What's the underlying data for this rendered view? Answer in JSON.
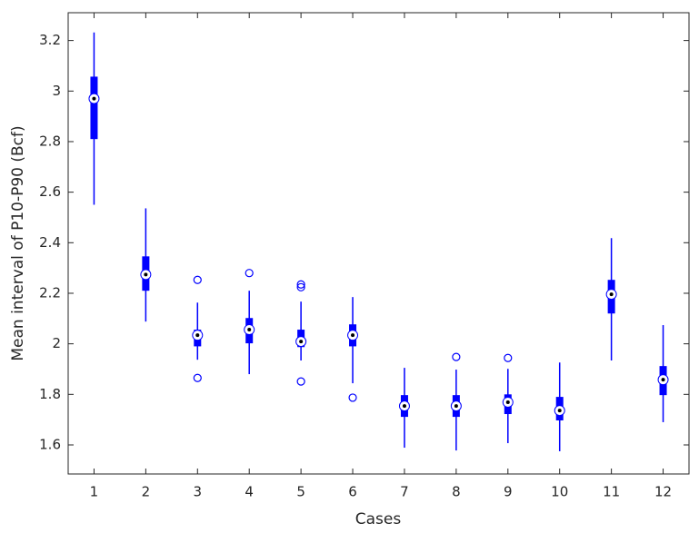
{
  "chart_data": {
    "type": "boxplot",
    "xlabel": "Cases",
    "ylabel": "Mean interval of P10-P90 (Bcf)",
    "categories": [
      1,
      2,
      3,
      4,
      5,
      6,
      7,
      8,
      9,
      10,
      11,
      12
    ],
    "color": "#0000ff",
    "ylim": [
      1.485,
      3.31
    ],
    "yticks": [
      1.6,
      1.8,
      2,
      2.2,
      2.4,
      2.6,
      2.8,
      3,
      3.2
    ],
    "boxes": [
      {
        "low": 2.55,
        "q1": 2.81,
        "median": 2.97,
        "q3": 3.057,
        "high": 3.232,
        "outliers": []
      },
      {
        "low": 2.088,
        "q1": 2.21,
        "median": 2.274,
        "q3": 2.346,
        "high": 2.536,
        "outliers": []
      },
      {
        "low": 1.937,
        "q1": 1.99,
        "median": 2.034,
        "q3": 2.056,
        "high": 2.163,
        "outliers": [
          2.253,
          1.865
        ]
      },
      {
        "low": 1.88,
        "q1": 2.002,
        "median": 2.056,
        "q3": 2.102,
        "high": 2.21,
        "outliers": [
          2.28
        ]
      },
      {
        "low": 1.934,
        "q1": 1.987,
        "median": 2.009,
        "q3": 2.056,
        "high": 2.167,
        "outliers": [
          2.235,
          2.224,
          1.851
        ]
      },
      {
        "low": 1.844,
        "q1": 1.99,
        "median": 2.034,
        "q3": 2.077,
        "high": 2.185,
        "outliers": [
          1.787
        ]
      },
      {
        "low": 1.589,
        "q1": 1.711,
        "median": 1.754,
        "q3": 1.797,
        "high": 1.905,
        "outliers": []
      },
      {
        "low": 1.578,
        "q1": 1.711,
        "median": 1.754,
        "q3": 1.797,
        "high": 1.898,
        "outliers": [
          1.948
        ]
      },
      {
        "low": 1.607,
        "q1": 1.722,
        "median": 1.769,
        "q3": 1.8,
        "high": 1.901,
        "outliers": [
          1.944
        ]
      },
      {
        "low": 1.575,
        "q1": 1.697,
        "median": 1.736,
        "q3": 1.79,
        "high": 1.926,
        "outliers": []
      },
      {
        "low": 1.934,
        "q1": 2.12,
        "median": 2.196,
        "q3": 2.253,
        "high": 2.418,
        "outliers": []
      },
      {
        "low": 1.69,
        "q1": 1.797,
        "median": 1.858,
        "q3": 1.912,
        "high": 2.074,
        "outliers": []
      }
    ]
  }
}
